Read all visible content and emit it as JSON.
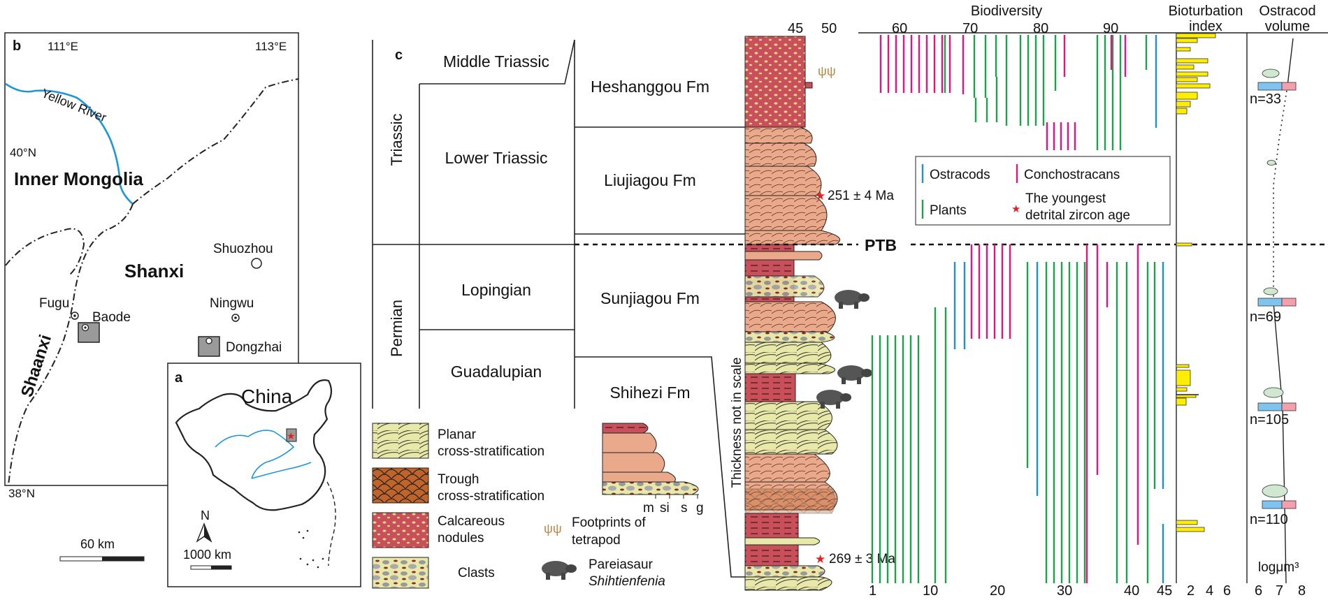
{
  "map": {
    "panel_b": "b",
    "lon_left": "111°E",
    "lon_right": "113°E",
    "lat_top": "40°N",
    "lat_bottom": "38°N",
    "river": "Yellow River",
    "region_inner_mongolia": "Inner Mongolia",
    "region_shanxi": "Shanxi",
    "region_shaanxi": "Shaanxi",
    "city_shuozhou": "Shuozhou",
    "city_ningwu": "Ningwu",
    "city_fugu": "Fugu",
    "city_baode": "Baode",
    "city_dongzhai": "Dongzhai",
    "scale": "60 km",
    "inset_label": "a",
    "inset_country": "China",
    "inset_north": "N",
    "inset_scale": "1000 km"
  },
  "column": {
    "panel_c": "c",
    "system_triassic": "Triassic",
    "system_permian": "Permian",
    "series_middle_triassic": "Middle Triassic",
    "series_lower_triassic": "Lower Triassic",
    "series_lopingian": "Lopingian",
    "series_guadalupian": "Guadalupian",
    "fm_heshanggou": "Heshanggou Fm",
    "fm_liujiagou": "Liujiagou Fm",
    "fm_sunjiagou": "Sunjiagou Fm",
    "fm_shihezi": "Shihezi Fm",
    "ptb": "PTB",
    "thickness_note": "Thickness not in scale",
    "age_upper": "251 ± 4 Ma",
    "age_lower": "269 ± 3 Ma",
    "grain_ticks": [
      "45",
      "50"
    ],
    "grain_scale": [
      "m",
      "si",
      "s",
      "g"
    ]
  },
  "legend": {
    "planar_1": "Planar",
    "planar_2": "cross-stratification",
    "trough_1": "Trough",
    "trough_2": "cross-stratification",
    "calc_1": "Calcareous",
    "calc_2": "nodules",
    "clasts": "Clasts",
    "footprints_1": "Footprints of",
    "footprints_2": "tetrapod",
    "pareiasaur_1": "Pareiasaur",
    "pareiasaur_2": "Shihtienfenia",
    "ostracods": "Ostracods",
    "conchostracans": "Conchostracans",
    "plants": "Plants",
    "zircon_1": "The youngest",
    "zircon_2": "detrital zircon age"
  },
  "colors": {
    "ostracods": "#1e90d6",
    "conchostracans": "#e0157f",
    "plants": "#1aa34a",
    "bioturbation": "#ffee00",
    "mudstone": "#c8505a",
    "sandstone": "#eaa98a",
    "planar_fill": "#e8e8a8",
    "trough_fill": "#c0642a",
    "ostracod_bar_left": "#7fc4ee",
    "ostracod_bar_right": "#f3a0ac"
  },
  "biodiversity": {
    "title": "Biodiversity",
    "top_ticks": [
      "60",
      "70",
      "80",
      "90"
    ],
    "bottom_ticks": [
      "1",
      "10",
      "20",
      "30",
      "40",
      "45"
    ]
  },
  "bioturbation": {
    "title_1": "Bioturbation",
    "title_2": "index",
    "ticks": [
      "2",
      "4",
      "6"
    ]
  },
  "ostracod": {
    "title_1": "Ostracod",
    "title_2": "volume",
    "ticks": [
      "6",
      "7",
      "8"
    ],
    "unit": "logμm³",
    "counts": [
      "n=33",
      "n=69",
      "n=105",
      "n=110"
    ]
  }
}
